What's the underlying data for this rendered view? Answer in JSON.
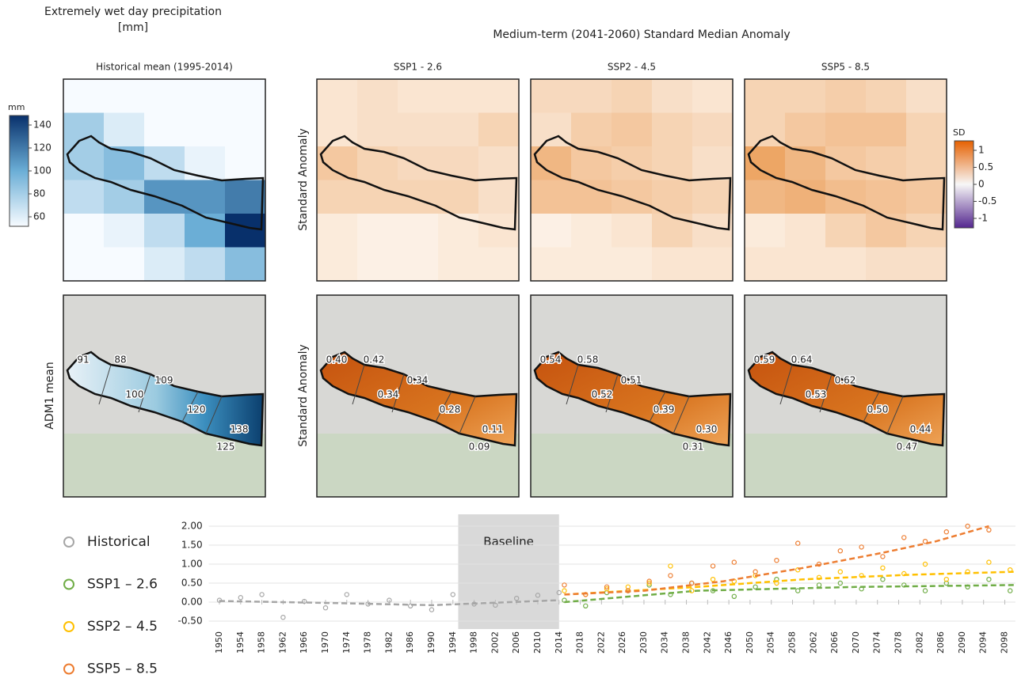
{
  "left_title": [
    "Extremely wet day precipitation",
    "[mm]"
  ],
  "main_title": "Medium-term (2041-2060) Standard Median Anomaly",
  "columns": [
    "Historical mean (1995-2014)",
    "SSP1 - 2.6",
    "SSP2 - 4.5",
    "SSP5 - 8.5"
  ],
  "row_labels": {
    "top": "Standard Anomaly",
    "bottom_left": "ADM1 mean",
    "bottom": "Standard Anomaly"
  },
  "colorbar_mm": {
    "title": "mm",
    "ticks": [
      140,
      120,
      100,
      80,
      60
    ]
  },
  "colorbar_sd": {
    "title": "SD",
    "ticks": [
      "1",
      "0.5",
      "0",
      "-0.5",
      "-1"
    ]
  },
  "adm1_labels": [
    [
      "91",
      "88",
      "109",
      "100",
      "120",
      "125",
      "138"
    ],
    [
      "0.40",
      "0.42",
      "0.34",
      "0.34",
      "0.28",
      "0.09",
      "0.11"
    ],
    [
      "0.54",
      "0.58",
      "0.51",
      "0.52",
      "0.39",
      "0.31",
      "0.30"
    ],
    [
      "0.59",
      "0.64",
      "0.62",
      "0.53",
      "0.50",
      "0.47",
      "0.44"
    ]
  ],
  "chart_data": {
    "type": "scatter",
    "baseline_label": "Baseline",
    "baseline_x": [
      1995,
      2014
    ],
    "xlim": [
      1948,
      2100
    ],
    "xticks": [
      1950,
      1954,
      1958,
      1962,
      1966,
      1970,
      1974,
      1978,
      1982,
      1986,
      1990,
      1994,
      1998,
      2002,
      2006,
      2010,
      2014,
      2018,
      2022,
      2026,
      2030,
      2034,
      2038,
      2042,
      2046,
      2050,
      2054,
      2058,
      2062,
      2066,
      2070,
      2074,
      2078,
      2082,
      2086,
      2090,
      2094,
      2098
    ],
    "ylim": [
      -0.5,
      2.0
    ],
    "yticks": [
      {
        "value": 2,
        "label": "2.00"
      },
      {
        "value": 1.5,
        "label": "1.50"
      },
      {
        "value": 1,
        "label": "1.00"
      },
      {
        "value": 0.5,
        "label": "0.50"
      },
      {
        "value": 0,
        "label": "0.00"
      },
      {
        "value": -0.5,
        "label": "-0.50"
      }
    ],
    "grid": true,
    "series": [
      {
        "name": "Historical",
        "color": "#a6a6a6",
        "x": [
          1950,
          1954,
          1958,
          1962,
          1966,
          1970,
          1974,
          1978,
          1982,
          1986,
          1990,
          1994,
          1998,
          2002,
          2006,
          2010,
          2014
        ],
        "values": [
          0.05,
          0.12,
          0.2,
          -0.4,
          0.02,
          -0.15,
          0.2,
          -0.05,
          0.05,
          -0.1,
          -0.2,
          0.2,
          -0.05,
          -0.08,
          0.1,
          0.18,
          0.25
        ],
        "trend": {
          "x": [
            1950,
            1970,
            1990,
            2014
          ],
          "values": [
            0.03,
            -0.02,
            -0.08,
            0.05
          ]
        }
      },
      {
        "name": "SSP1 – 2.6",
        "color": "#70ad47",
        "x": [
          2015,
          2019,
          2023,
          2027,
          2031,
          2035,
          2039,
          2043,
          2047,
          2051,
          2055,
          2059,
          2063,
          2067,
          2071,
          2075,
          2079,
          2083,
          2087,
          2091,
          2095,
          2099
        ],
        "values": [
          0.05,
          -0.1,
          0.25,
          0.3,
          0.45,
          0.2,
          0.5,
          0.3,
          0.15,
          0.4,
          0.6,
          0.3,
          0.45,
          0.5,
          0.35,
          0.6,
          0.45,
          0.3,
          0.5,
          0.4,
          0.6,
          0.3
        ],
        "trend": {
          "x": [
            2015,
            2040,
            2070,
            2100
          ],
          "values": [
            0.0,
            0.3,
            0.4,
            0.45
          ]
        }
      },
      {
        "name": "SSP2 – 4.5",
        "color": "#ffc000",
        "x": [
          2015,
          2019,
          2023,
          2027,
          2031,
          2035,
          2039,
          2043,
          2047,
          2051,
          2055,
          2059,
          2063,
          2067,
          2071,
          2075,
          2079,
          2083,
          2087,
          2091,
          2095,
          2099
        ],
        "values": [
          0.3,
          0.2,
          0.35,
          0.4,
          0.5,
          0.95,
          0.3,
          0.6,
          0.55,
          0.7,
          0.5,
          0.85,
          0.65,
          0.8,
          0.7,
          0.9,
          0.75,
          1.0,
          0.6,
          0.8,
          1.05,
          0.85
        ],
        "trend": {
          "x": [
            2015,
            2040,
            2060,
            2080,
            2100
          ],
          "values": [
            0.2,
            0.4,
            0.6,
            0.72,
            0.8
          ]
        }
      },
      {
        "name": "SSP5 – 8.5",
        "color": "#ed7d31",
        "x": [
          2015,
          2019,
          2023,
          2027,
          2031,
          2035,
          2039,
          2043,
          2047,
          2051,
          2055,
          2059,
          2063,
          2067,
          2071,
          2075,
          2079,
          2083,
          2087,
          2091,
          2095,
          2099
        ],
        "values": [
          0.45,
          0.2,
          0.4,
          0.3,
          0.55,
          0.7,
          0.5,
          0.95,
          1.05,
          0.8,
          1.1,
          1.55,
          1.0,
          1.35,
          1.45,
          1.2,
          1.7,
          1.6,
          1.85,
          2.0,
          1.9,
          null
        ],
        "trend": {
          "x": [
            2015,
            2030,
            2045,
            2060,
            2075,
            2085,
            2095
          ],
          "values": [
            0.2,
            0.3,
            0.55,
            0.9,
            1.3,
            1.6,
            2.0
          ]
        }
      }
    ]
  }
}
